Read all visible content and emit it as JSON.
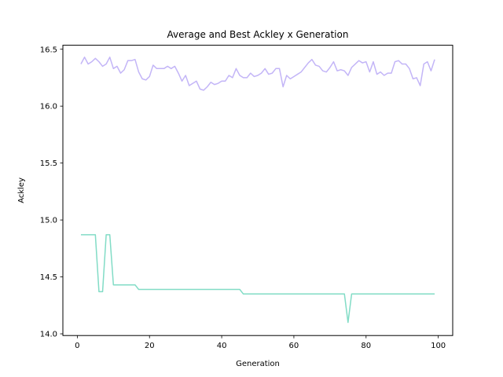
{
  "chart_data": {
    "type": "line",
    "title": "Average and Best Ackley x Generation",
    "xlabel": "Generation",
    "ylabel": "Ackley",
    "xlim": [
      -4,
      104
    ],
    "ylim": [
      13.985,
      16.535
    ],
    "xticks": [
      0,
      20,
      40,
      60,
      80,
      100
    ],
    "yticks": [
      14.0,
      14.5,
      15.0,
      15.5,
      16.0,
      16.5
    ],
    "ytick_labels": [
      "14.0",
      "14.5",
      "15.0",
      "15.5",
      "16.0",
      "16.5"
    ],
    "grid": false,
    "legend": "none",
    "x": [
      1,
      2,
      3,
      4,
      5,
      6,
      7,
      8,
      9,
      10,
      11,
      12,
      13,
      14,
      15,
      16,
      17,
      18,
      19,
      20,
      21,
      22,
      23,
      24,
      25,
      26,
      27,
      28,
      29,
      30,
      31,
      32,
      33,
      34,
      35,
      36,
      37,
      38,
      39,
      40,
      41,
      42,
      43,
      44,
      45,
      46,
      47,
      48,
      49,
      50,
      51,
      52,
      53,
      54,
      55,
      56,
      57,
      58,
      59,
      60,
      61,
      62,
      63,
      64,
      65,
      66,
      67,
      68,
      69,
      70,
      71,
      72,
      73,
      74,
      75,
      76,
      77,
      78,
      79,
      80,
      81,
      82,
      83,
      84,
      85,
      86,
      87,
      88,
      89,
      90,
      91,
      92,
      93,
      94,
      95,
      96,
      97,
      98,
      99
    ],
    "series": [
      {
        "color": "#c3b5f7",
        "values": [
          16.37,
          16.43,
          16.37,
          16.39,
          16.42,
          16.39,
          16.35,
          16.37,
          16.43,
          16.33,
          16.35,
          16.29,
          16.32,
          16.4,
          16.4,
          16.41,
          16.3,
          16.24,
          16.23,
          16.26,
          16.36,
          16.33,
          16.33,
          16.33,
          16.35,
          16.33,
          16.35,
          16.29,
          16.22,
          16.27,
          16.18,
          16.2,
          16.22,
          16.15,
          16.14,
          16.17,
          16.21,
          16.19,
          16.2,
          16.22,
          16.22,
          16.27,
          16.25,
          16.33,
          16.27,
          16.25,
          16.25,
          16.29,
          16.26,
          16.27,
          16.29,
          16.33,
          16.28,
          16.29,
          16.33,
          16.33,
          16.17,
          16.27,
          16.24,
          16.26,
          16.28,
          16.3,
          16.34,
          16.38,
          16.41,
          16.36,
          16.35,
          16.31,
          16.3,
          16.34,
          16.39,
          16.31,
          16.32,
          16.31,
          16.27,
          16.34,
          16.37,
          16.4,
          16.38,
          16.39,
          16.3,
          16.39,
          16.28,
          16.3,
          16.27,
          16.29,
          16.29,
          16.39,
          16.4,
          16.37,
          16.37,
          16.33,
          16.24,
          16.25,
          16.18,
          16.37,
          16.39,
          16.31,
          16.41
        ]
      },
      {
        "color": "#82dcc6",
        "values": [
          14.87,
          14.87,
          14.87,
          14.87,
          14.87,
          14.37,
          14.37,
          14.87,
          14.87,
          14.43,
          14.43,
          14.43,
          14.43,
          14.43,
          14.43,
          14.43,
          14.39,
          14.39,
          14.39,
          14.39,
          14.39,
          14.39,
          14.39,
          14.39,
          14.39,
          14.39,
          14.39,
          14.39,
          14.39,
          14.39,
          14.39,
          14.39,
          14.39,
          14.39,
          14.39,
          14.39,
          14.39,
          14.39,
          14.39,
          14.39,
          14.39,
          14.39,
          14.39,
          14.39,
          14.39,
          14.35,
          14.35,
          14.35,
          14.35,
          14.35,
          14.35,
          14.35,
          14.35,
          14.35,
          14.35,
          14.35,
          14.35,
          14.35,
          14.35,
          14.35,
          14.35,
          14.35,
          14.35,
          14.35,
          14.35,
          14.35,
          14.35,
          14.35,
          14.35,
          14.35,
          14.35,
          14.35,
          14.35,
          14.35,
          14.1,
          14.35,
          14.35,
          14.35,
          14.35,
          14.35,
          14.35,
          14.35,
          14.35,
          14.35,
          14.35,
          14.35,
          14.35,
          14.35,
          14.35,
          14.35,
          14.35,
          14.35,
          14.35,
          14.35,
          14.35,
          14.35,
          14.35,
          14.35,
          14.35
        ]
      }
    ]
  }
}
